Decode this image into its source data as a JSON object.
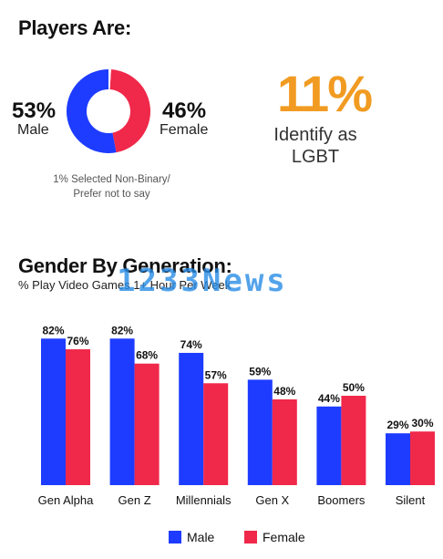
{
  "players": {
    "heading": "Players Are:",
    "male_pct": "53%",
    "male_label": "Male",
    "female_pct": "46%",
    "female_label": "Female",
    "note_line1": "1% Selected Non-Binary/",
    "note_line2": "Prefer not to say",
    "lgbt_pct": "11%",
    "lgbt_line1": "Identify as",
    "lgbt_line2": "LGBT"
  },
  "donut_data": {
    "type": "pie",
    "values": [
      53,
      46,
      1
    ],
    "labels": [
      "Male",
      "Female",
      "Non-Binary/Prefer not to say"
    ],
    "colors": [
      "#1e3cff",
      "#f0284a",
      "#ffffff"
    ]
  },
  "generation": {
    "heading": "Gender By Generation:",
    "subtitle": "% Play Video Games 1+ Hour Per Week"
  },
  "watermark": "1233News",
  "colors": {
    "male": "#1e3cff",
    "female": "#f0284a",
    "lgbt": "#f19b22"
  },
  "chart_data": {
    "type": "bar",
    "title": "Gender By Generation:",
    "subtitle": "% Play Video Games 1+ Hour Per Week",
    "categories": [
      "Gen Alpha",
      "Gen Z",
      "Millennials",
      "Gen X",
      "Boomers",
      "Silent"
    ],
    "series": [
      {
        "name": "Male",
        "values": [
          82,
          82,
          74,
          59,
          44,
          29
        ],
        "labels": [
          "82%",
          "82%",
          "74%",
          "59%",
          "44%",
          "29%"
        ]
      },
      {
        "name": "Female",
        "values": [
          76,
          68,
          57,
          48,
          50,
          30
        ],
        "labels": [
          "76%",
          "68%",
          "57%",
          "48%",
          "50%",
          "30%"
        ]
      }
    ],
    "ylim": [
      0,
      100
    ],
    "grid": false,
    "legend": "bottom-center"
  }
}
